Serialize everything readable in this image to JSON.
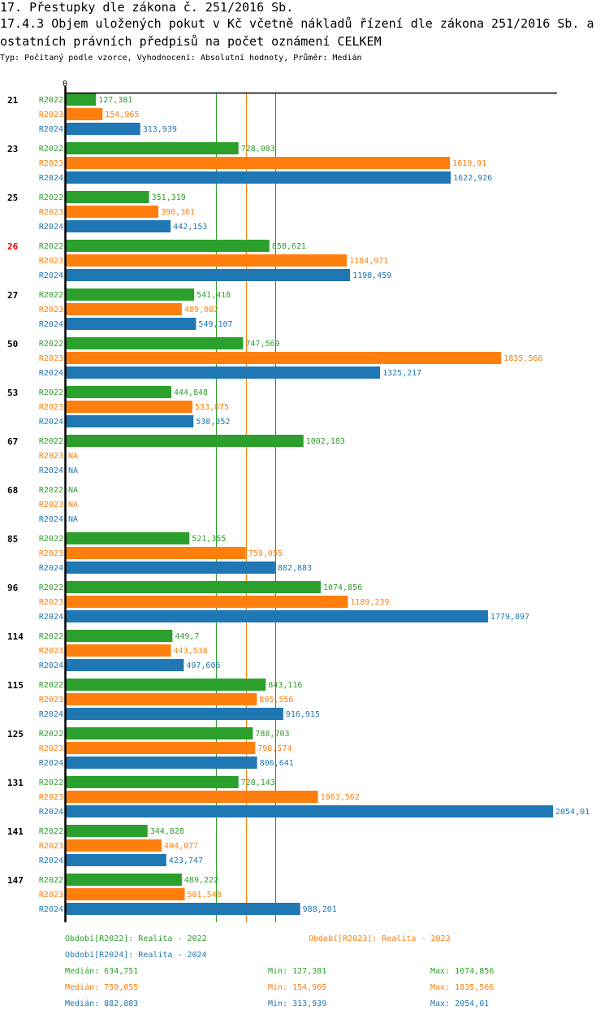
{
  "header": {
    "title_line1": "17. Přestupky dle zákona č. 251/2016 Sb.",
    "title_line2": "17.4.3 Objem uložených pokut v Kč včetně nákladů řízení dle zákona 251/2016 Sb. a",
    "title_line3": " ostatních právních předpisů na počet oznámení CELKEM",
    "subtitle": "Typ: Počítaný podle vzorce, Vyhodnocení: Absolutní hodnoty, Průměr: Medián"
  },
  "colors": {
    "R2022": "#2ca02c",
    "R2023": "#ff7f0e",
    "R2024": "#1f77b4",
    "highlight": "#e00000",
    "axis": "#000000"
  },
  "chart_data": {
    "type": "bar",
    "orientation": "horizontal",
    "title": "17.4.3 Objem uložených pokut v Kč včetně nákladů řízení dle zákona 251/2016 Sb. a ostatních právních předpisů na počet oznámení CELKEM",
    "x_tick_labels": [
      "0"
    ],
    "xlim": [
      0,
      2054.01
    ],
    "highlighted_category": "26",
    "na_label": "NA",
    "categories": [
      "21",
      "23",
      "25",
      "26",
      "27",
      "50",
      "53",
      "67",
      "68",
      "85",
      "96",
      "114",
      "115",
      "125",
      "131",
      "141",
      "147"
    ],
    "series": [
      {
        "name": "R2022",
        "values": [
          127.381,
          728.083,
          351.319,
          858.621,
          541.418,
          747.569,
          444.848,
          1002.183,
          null,
          521.355,
          1074.856,
          449.7,
          843.116,
          788.703,
          728.143,
          344.828,
          489.222
        ],
        "labels": [
          "127,381",
          "728,083",
          "351,319",
          "858,621",
          "541,418",
          "747,569",
          "444,848",
          "1002,183",
          "NA",
          "521,355",
          "1074,856",
          "449,7",
          "843,116",
          "788,703",
          "728,143",
          "344,828",
          "489,222"
        ],
        "median": 634.751
      },
      {
        "name": "R2023",
        "values": [
          154.965,
          1619.91,
          390.361,
          1184.971,
          489.082,
          1835.566,
          533.875,
          null,
          null,
          759.055,
          1189.239,
          443.538,
          805.556,
          798.574,
          1063.562,
          404.077,
          501.548
        ],
        "labels": [
          "154,965",
          "1619,91",
          "390,361",
          "1184,971",
          "489,082",
          "1835,566",
          "533,875",
          "NA",
          "NA",
          "759,055",
          "1189,239",
          "443,538",
          "805,556",
          "798,574",
          "1063,562",
          "404,077",
          "501,548"
        ],
        "median": 759.055
      },
      {
        "name": "R2024",
        "values": [
          313.939,
          1622.926,
          442.153,
          1198.459,
          549.107,
          1325.217,
          538.352,
          null,
          null,
          882.883,
          1779.897,
          497.606,
          916.915,
          806.641,
          2054.01,
          423.747,
          988.201
        ],
        "labels": [
          "313,939",
          "1622,926",
          "442,153",
          "1198,459",
          "549,107",
          "1325,217",
          "538,352",
          "NA",
          "NA",
          "882,883",
          "1779,897",
          "497,606",
          "916,915",
          "806,641",
          "2054,01",
          "423,747",
          "988,201"
        ],
        "median": 882.883
      }
    ]
  },
  "legend": {
    "periods": [
      "Období[R2022]: Realita - 2022",
      "Období[R2023]: Realita - 2023",
      "Období[R2024]: Realita - 2024"
    ],
    "stats": [
      {
        "median": "Medián: 634,751",
        "min": "Min: 127,381",
        "max": "Max: 1074,856"
      },
      {
        "median": "Medián: 759,055",
        "min": "Min: 154,965",
        "max": "Max: 1835,566"
      },
      {
        "median": "Medián: 882,883",
        "min": "Min: 313,939",
        "max": "Max: 2054,01"
      }
    ]
  }
}
